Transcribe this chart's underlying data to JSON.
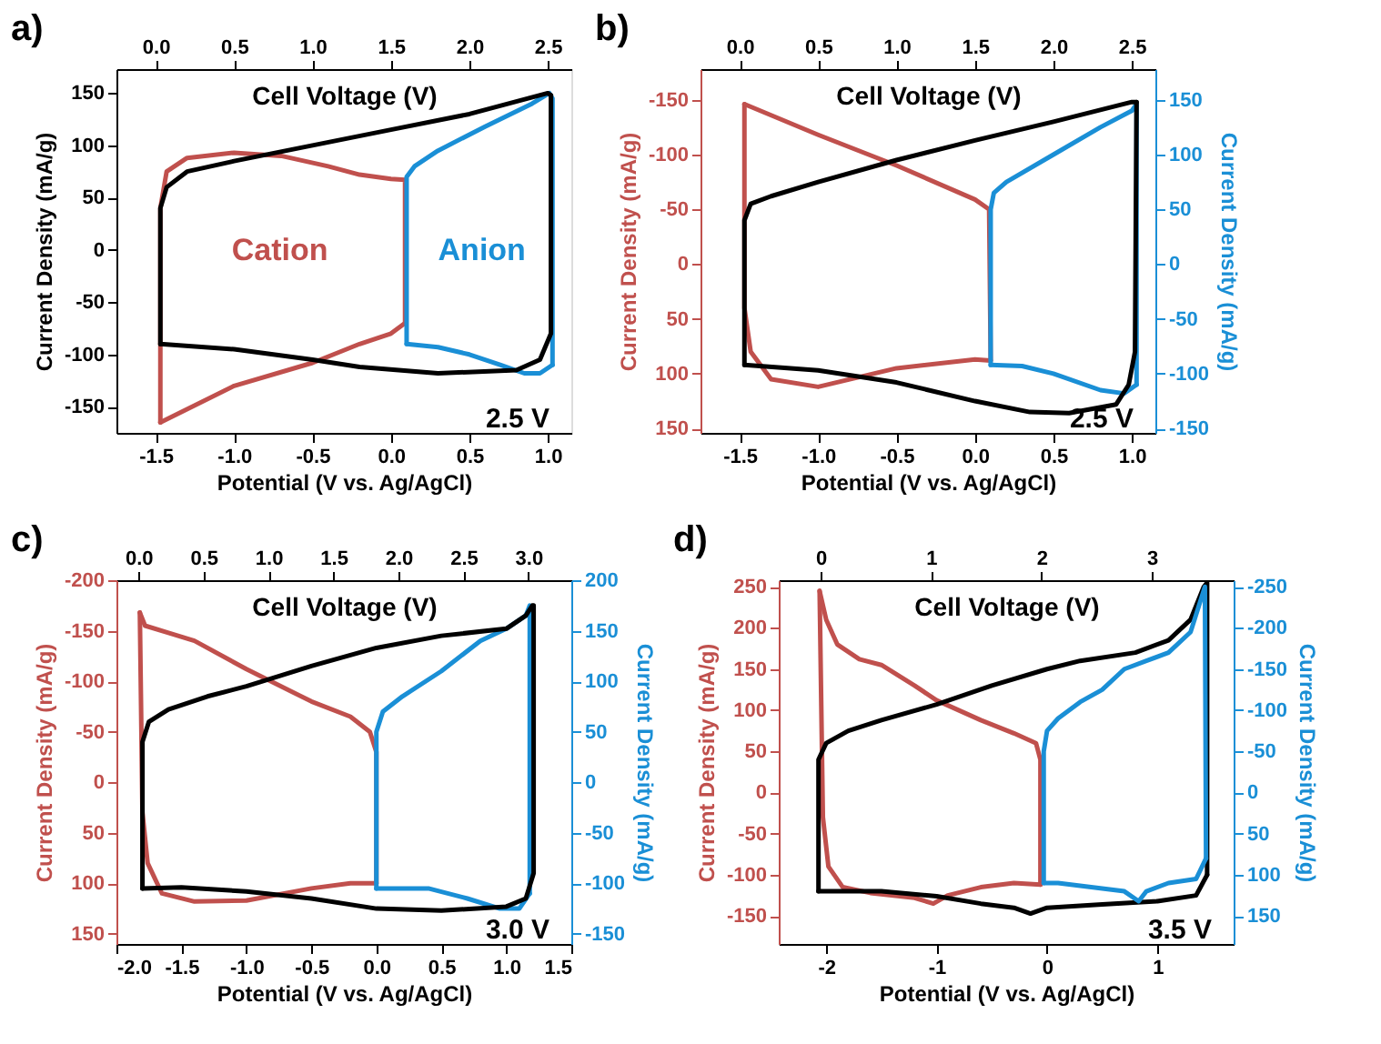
{
  "chart_data": [
    {
      "type": "line",
      "xlabel": "Potential (V vs. Ag/AgCl)",
      "ylabel": "Current Density (mA/g)",
      "x2label": "Cell Voltage (V)",
      "annotations": [
        "a)",
        "2.5 V"
      ],
      "xlim": [
        -1.75,
        1.15
      ],
      "xticks": [
        -1.5,
        {
          "value": -1,
          "label": "-1.0"
        },
        -0.5,
        {
          "value": 0,
          "label": "0.0"
        },
        0.5,
        {
          "value": 1,
          "label": "1.0"
        }
      ],
      "x2lim": [
        -0.25,
        2.65
      ],
      "x2ticks": [
        {
          "value": 0,
          "label": "0.0"
        },
        0.5,
        {
          "value": 1,
          "label": "1.0"
        },
        1.5,
        {
          "value": 2,
          "label": "2.0"
        },
        2.5
      ],
      "ylim": [
        -175,
        173
      ],
      "yticks": [
        -150,
        -100,
        -50,
        0,
        50,
        100,
        150
      ],
      "series": [
        {
          "name": "Cation",
          "color": "#c0504d",
          "x": [
            -1.47,
            -1.47,
            -1.43,
            -1.3,
            -1.0,
            -0.7,
            -0.4,
            -0.2,
            0.0,
            0.09,
            0.09
          ],
          "values": [
            -165,
            40,
            75,
            88,
            93,
            90,
            80,
            72,
            68,
            67,
            -70
          ]
        },
        {
          "color": "#c0504d",
          "x": [
            -1.47,
            -1.0,
            -0.5,
            -0.2,
            0.0,
            0.09
          ],
          "values": [
            -165,
            -130,
            -108,
            -90,
            -80,
            -70
          ]
        },
        {
          "name": "Anion",
          "color": "#1a8fd6",
          "x": [
            0.1,
            0.1,
            0.15,
            0.3,
            0.6,
            0.9,
            1.01,
            1.03,
            1.03
          ],
          "values": [
            -90,
            70,
            80,
            95,
            118,
            140,
            150,
            145,
            -110
          ]
        },
        {
          "color": "#1a8fd6",
          "x": [
            0.1,
            0.3,
            0.5,
            0.7,
            0.85,
            0.95,
            1.03
          ],
          "values": [
            -90,
            -93,
            -100,
            -110,
            -118,
            -118,
            -110
          ]
        },
        {
          "color": "#000000",
          "x": [
            -1.47,
            -1.47,
            -1.43,
            -1.3,
            -1.0,
            -0.5,
            0.0,
            0.5,
            1.0,
            1.02
          ],
          "values": [
            -90,
            40,
            60,
            75,
            85,
            100,
            115,
            130,
            150,
            148
          ]
        },
        {
          "color": "#000000",
          "x": [
            -1.47,
            -1.0,
            -0.5,
            -0.2,
            0.3,
            0.8,
            0.95,
            1.02,
            1.02
          ],
          "values": [
            -90,
            -95,
            -105,
            -112,
            -118,
            -115,
            -105,
            -80,
            148
          ]
        }
      ]
    },
    {
      "type": "line",
      "xlabel": "Potential (V vs. Ag/AgCl)",
      "ylabel": "Current Density (mA/g)",
      "y2label": "Current Density (mA/g)",
      "x2label": "Cell Voltage (V)",
      "annotations": [
        "b)",
        "2.5 V"
      ],
      "xlim": [
        -1.75,
        1.15
      ],
      "xticks": [
        -1.5,
        {
          "value": -1,
          "label": "-1.0"
        },
        -0.5,
        {
          "value": 0,
          "label": "0.0"
        },
        0.5,
        {
          "value": 1,
          "label": "1.0"
        }
      ],
      "x2lim": [
        -0.25,
        2.65
      ],
      "x2ticks": [
        {
          "value": 0,
          "label": "0.0"
        },
        0.5,
        {
          "value": 1,
          "label": "1.0"
        },
        1.5,
        {
          "value": 2,
          "label": "2.0"
        },
        2.5
      ],
      "ylim": [
        154,
        -178
      ],
      "yticks": [
        -150,
        -100,
        -50,
        0,
        50,
        100,
        150
      ],
      "y2lim": [
        -154,
        178
      ],
      "y2ticks": [
        -150,
        -100,
        -50,
        0,
        50,
        100,
        150
      ],
      "series": [
        {
          "color": "#c0504d",
          "x": [
            -1.47,
            -1.0,
            -0.5,
            0.0,
            0.09,
            0.1
          ],
          "values": [
            -146,
            -118,
            -90,
            -59,
            -50,
            88
          ]
        },
        {
          "color": "#c0504d",
          "x": [
            -1.47,
            -1.47,
            -1.43,
            -1.3,
            -1.0,
            -0.5,
            0.0,
            0.1
          ],
          "values": [
            -146,
            40,
            80,
            105,
            112,
            95,
            87,
            88
          ]
        },
        {
          "color": "#1a8fd6",
          "axis": "y2",
          "x": [
            0.1,
            0.1,
            0.12,
            0.2,
            0.5,
            0.8,
            1.0,
            1.03,
            1.03
          ],
          "values": [
            -92,
            50,
            65,
            75,
            100,
            125,
            140,
            146,
            -110
          ]
        },
        {
          "color": "#1a8fd6",
          "axis": "y2",
          "x": [
            0.1,
            0.3,
            0.5,
            0.8,
            0.95,
            1.03
          ],
          "values": [
            -92,
            -93,
            -100,
            -115,
            -118,
            -110
          ]
        },
        {
          "color": "#000000",
          "axis": "y2",
          "x": [
            -1.47,
            -1.47,
            -1.43,
            -1.3,
            -1.0,
            -0.5,
            0.0,
            0.5,
            1.0,
            1.03
          ],
          "values": [
            -92,
            40,
            55,
            62,
            75,
            95,
            113,
            130,
            148,
            148
          ]
        },
        {
          "color": "#000000",
          "axis": "y2",
          "x": [
            -1.47,
            -1.0,
            -0.5,
            0.0,
            0.35,
            0.6,
            0.9,
            0.98,
            1.02,
            1.03
          ],
          "values": [
            -92,
            -97,
            -108,
            -125,
            -135,
            -136,
            -128,
            -110,
            -80,
            148
          ]
        }
      ]
    },
    {
      "type": "line",
      "xlabel": "Potential (V vs. Ag/AgCl)",
      "ylabel": "Current Density (mA/g)",
      "y2label": "Current Density (mA/g)",
      "x2label": "Cell Voltage (V)",
      "annotations": [
        "c)",
        "3.0 V"
      ],
      "xlim": [
        -2.0,
        1.5
      ],
      "xticks": [
        {
          "value": -2,
          "label": "-2.0"
        },
        -1.5,
        {
          "value": -1,
          "label": "-1.0"
        },
        -0.5,
        {
          "value": 0,
          "label": "0.0"
        },
        0.5,
        {
          "value": 1,
          "label": "1.0"
        },
        1.5
      ],
      "x2lim": [
        -0.17,
        3.33
      ],
      "x2ticks": [
        {
          "value": 0,
          "label": "0.0"
        },
        0.5,
        {
          "value": 1,
          "label": "1.0"
        },
        1.5,
        {
          "value": 2,
          "label": "2.0"
        },
        2.5,
        {
          "value": 3,
          "label": "3.0"
        }
      ],
      "ylim": [
        160,
        -200
      ],
      "yticks": [
        -200,
        -150,
        -100,
        -50,
        0,
        50,
        100,
        150
      ],
      "y2lim": [
        -160,
        200
      ],
      "y2ticks": [
        -150,
        -100,
        -50,
        0,
        50,
        100,
        150,
        200
      ],
      "series": [
        {
          "color": "#c0504d",
          "x": [
            -1.82,
            -1.78,
            -1.6,
            -1.4,
            -1.0,
            -0.5,
            -0.2,
            -0.05,
            0.0,
            0.0
          ],
          "values": [
            -168,
            -155,
            -148,
            -140,
            -112,
            -80,
            -65,
            -50,
            -30,
            100
          ]
        },
        {
          "color": "#c0504d",
          "x": [
            -1.82,
            -1.8,
            -1.76,
            -1.65,
            -1.4,
            -1.0,
            -0.5,
            -0.2,
            0.0
          ],
          "values": [
            -168,
            30,
            80,
            110,
            118,
            117,
            105,
            100,
            100
          ]
        },
        {
          "color": "#1a8fd6",
          "axis": "y2",
          "x": [
            0.0,
            0.0,
            0.05,
            0.2,
            0.5,
            0.8,
            1.0,
            1.15,
            1.18,
            1.18
          ],
          "values": [
            -105,
            50,
            70,
            85,
            110,
            140,
            152,
            165,
            175,
            -110
          ]
        },
        {
          "color": "#1a8fd6",
          "axis": "y2",
          "x": [
            0.0,
            0.1,
            0.4,
            0.7,
            0.95,
            1.1,
            1.18
          ],
          "values": [
            -105,
            -105,
            -105,
            -115,
            -125,
            -125,
            -110
          ]
        },
        {
          "color": "#000000",
          "axis": "y2",
          "x": [
            -1.8,
            -1.8,
            -1.75,
            -1.6,
            -1.3,
            -1.0,
            -0.5,
            0.0,
            0.5,
            1.0,
            1.15,
            1.2
          ],
          "values": [
            -105,
            40,
            60,
            72,
            85,
            95,
            115,
            133,
            145,
            152,
            165,
            175
          ]
        },
        {
          "color": "#000000",
          "axis": "y2",
          "x": [
            -1.8,
            -1.5,
            -1.0,
            -0.5,
            0.0,
            0.5,
            1.0,
            1.15,
            1.21,
            1.21
          ],
          "values": [
            -105,
            -104,
            -108,
            -115,
            -125,
            -127,
            -123,
            -115,
            -90,
            175
          ]
        }
      ]
    },
    {
      "type": "line",
      "xlabel": "Potential (V vs. Ag/AgCl)",
      "ylabel": "Current Density (mA/g)",
      "y2label": "Current Density (mA/g)",
      "x2label": "Cell Voltage (V)",
      "annotations": [
        "d)",
        "3.5 V"
      ],
      "xlim": [
        -2.43,
        1.69
      ],
      "xticks": [
        -2,
        -1,
        0,
        1
      ],
      "x2lim": [
        -0.38,
        3.74
      ],
      "x2ticks": [
        0,
        1,
        2,
        3
      ],
      "ylim": [
        -184,
        258
      ],
      "yticks": [
        -150,
        -100,
        -50,
        0,
        50,
        100,
        150,
        200,
        250
      ],
      "y2lim": [
        184,
        -258
      ],
      "y2ticks": [
        -250,
        -200,
        -150,
        -100,
        -50,
        0,
        50,
        100,
        150
      ],
      "series": [
        {
          "color": "#c0504d",
          "x": [
            -2.06,
            -2.0,
            -1.9,
            -1.7,
            -1.5,
            -1.2,
            -1.0,
            -0.6,
            -0.3,
            -0.1,
            -0.06,
            -0.06
          ],
          "values": [
            245,
            210,
            180,
            162,
            155,
            130,
            112,
            88,
            72,
            60,
            40,
            -112
          ]
        },
        {
          "color": "#c0504d",
          "x": [
            -2.06,
            -2.03,
            -1.98,
            -1.85,
            -1.6,
            -1.2,
            -1.03,
            -0.9,
            -0.6,
            -0.3,
            -0.06
          ],
          "values": [
            245,
            -30,
            -90,
            -115,
            -122,
            -128,
            -135,
            -125,
            -115,
            -110,
            -112
          ]
        },
        {
          "color": "#1a8fd6",
          "axis": "y2",
          "x": [
            -0.03,
            -0.03,
            0.0,
            0.1,
            0.3,
            0.5,
            0.7,
            0.9,
            1.1,
            1.3,
            1.43,
            1.44
          ],
          "values": [
            110,
            -50,
            -75,
            -90,
            -110,
            -125,
            -150,
            -160,
            -170,
            -195,
            -250,
            80
          ]
        },
        {
          "color": "#1a8fd6",
          "axis": "y2",
          "x": [
            -0.03,
            0.1,
            0.4,
            0.7,
            0.83,
            0.9,
            1.1,
            1.35,
            1.44
          ],
          "values": [
            110,
            110,
            115,
            120,
            132,
            120,
            110,
            105,
            80
          ]
        },
        {
          "color": "#000000",
          "x": [
            -2.07,
            -2.07,
            -2.0,
            -1.8,
            -1.5,
            -1.0,
            -0.5,
            0.0,
            0.3,
            0.8,
            1.1,
            1.3,
            1.42,
            1.45,
            1.45
          ],
          "values": [
            -120,
            40,
            60,
            75,
            88,
            107,
            130,
            150,
            160,
            170,
            185,
            210,
            250,
            255,
            -100
          ]
        },
        {
          "color": "#000000",
          "x": [
            -2.07,
            -1.5,
            -1.0,
            -0.6,
            -0.3,
            -0.15,
            0.0,
            0.5,
            1.0,
            1.35,
            1.45
          ],
          "values": [
            -120,
            -120,
            -126,
            -135,
            -140,
            -147,
            -140,
            -136,
            -132,
            -125,
            -100
          ]
        }
      ]
    }
  ]
}
